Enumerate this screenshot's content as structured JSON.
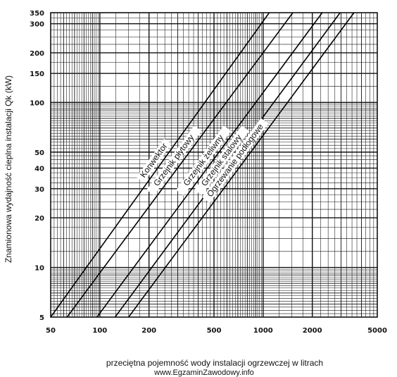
{
  "chart_data": {
    "type": "line",
    "xscale": "log",
    "yscale": "log",
    "xlim": [
      50,
      5000
    ],
    "ylim": [
      5,
      350
    ],
    "xticks": [
      50,
      100,
      200,
      500,
      1000,
      2000,
      5000
    ],
    "yticks": [
      5,
      10,
      20,
      30,
      40,
      50,
      100,
      150,
      200,
      300,
      350
    ],
    "xlabel": "przeciętna pojemność wody instalacji ogrzewczej w litrach",
    "ylabel": "Znamionowa wydajność cieplna instalacji Qk (kW)",
    "grid": true,
    "series": [
      {
        "name": "Konwektor",
        "x": [
          50,
          1090
        ],
        "y": [
          5,
          350
        ]
      },
      {
        "name": "Grzejnik płytowy",
        "x": [
          63,
          1520
        ],
        "y": [
          5,
          350
        ]
      },
      {
        "name": "Grzejnik żeliwny",
        "x": [
          96,
          2300
        ],
        "y": [
          5,
          350
        ]
      },
      {
        "name": "Grzejnik stalowy",
        "x": [
          124,
          2960
        ],
        "y": [
          5,
          350
        ]
      },
      {
        "name": "Ogrzewanie podłogowe",
        "x": [
          150,
          3600
        ],
        "y": [
          5,
          350
        ]
      }
    ]
  },
  "footer": "www.EgzaminZawodowy.info"
}
